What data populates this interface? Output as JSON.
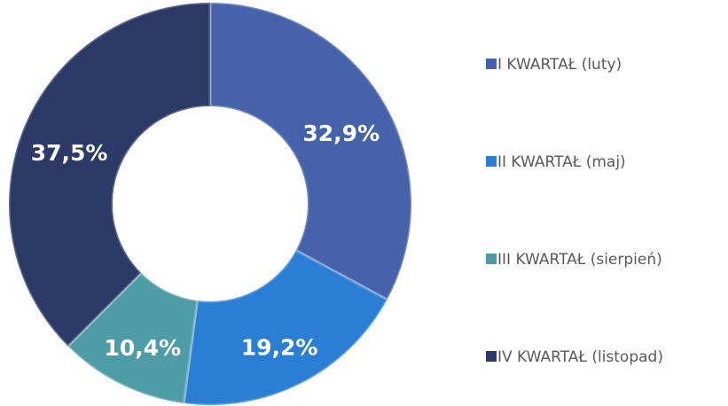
{
  "chart_data": {
    "type": "donut",
    "categories": [
      "I KWARTAŁ (luty)",
      "II KWARTAŁ (maj)",
      "III KWARTAŁ (sierpień)",
      "IV KWARTAŁ (listopad)"
    ],
    "values": [
      32.9,
      19.2,
      10.4,
      37.5
    ],
    "value_labels": [
      "32,9%",
      "19,2%",
      "10,4%",
      "37,5%"
    ],
    "colors": [
      "#4562ab",
      "#2a7fd4",
      "#4e9ca5",
      "#2b3a66"
    ],
    "legend": "right"
  }
}
